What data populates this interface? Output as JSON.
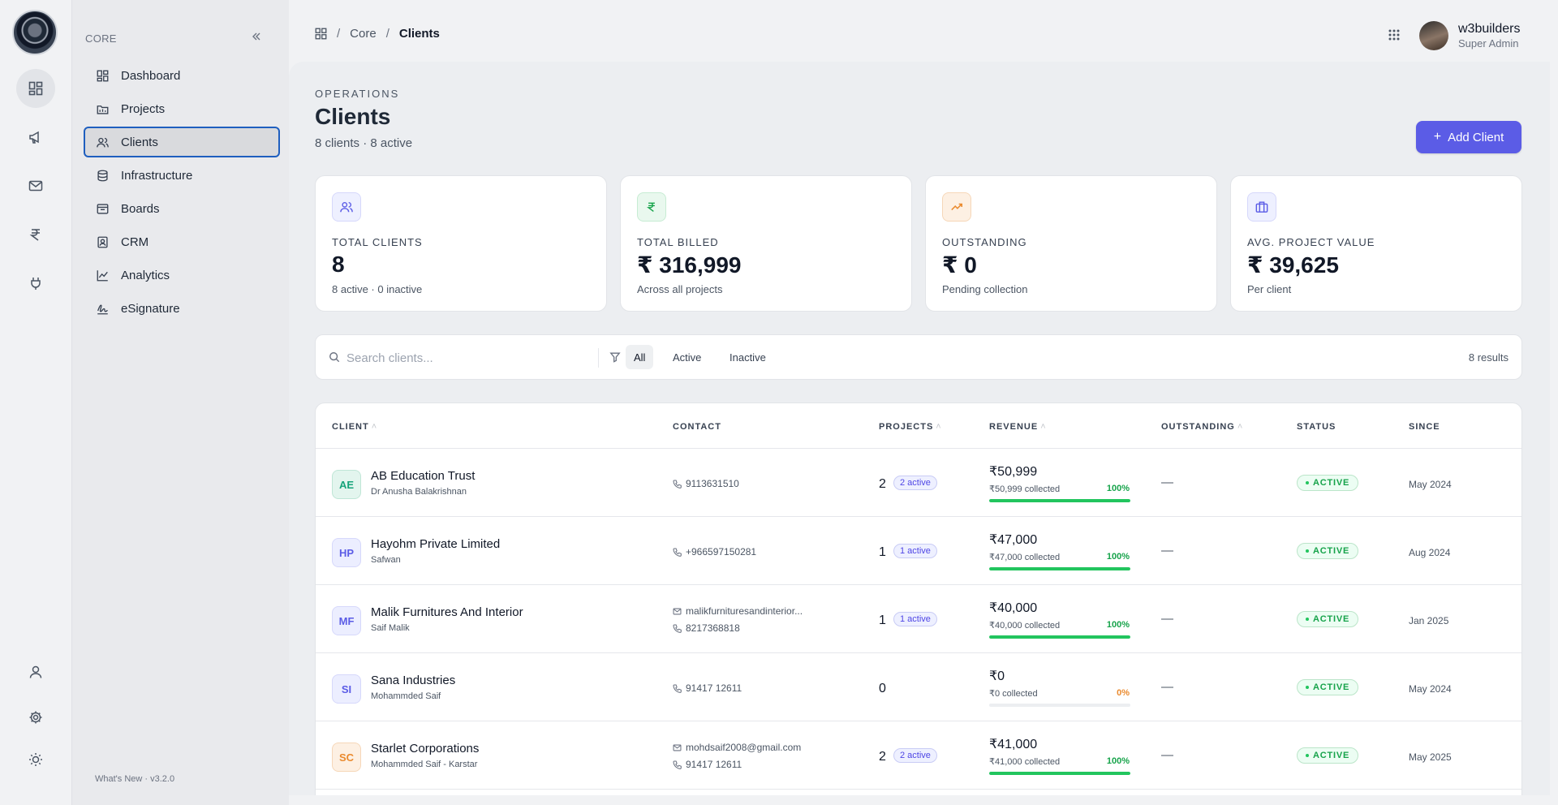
{
  "rail": {
    "icons": [
      "dashboard-icon",
      "megaphone-icon",
      "mail-icon",
      "rupee-icon",
      "plug-icon",
      "user-icon",
      "settings-icon",
      "sun-icon"
    ]
  },
  "sidebar": {
    "section_label": "CORE",
    "items": [
      {
        "label": "Dashboard",
        "icon": "dashboard-icon"
      },
      {
        "label": "Projects",
        "icon": "projects-icon"
      },
      {
        "label": "Clients",
        "icon": "clients-icon",
        "active": true
      },
      {
        "label": "Infrastructure",
        "icon": "database-icon"
      },
      {
        "label": "Boards",
        "icon": "board-icon"
      },
      {
        "label": "CRM",
        "icon": "contact-card-icon"
      },
      {
        "label": "Analytics",
        "icon": "chart-line-icon"
      },
      {
        "label": "eSignature",
        "icon": "signature-icon"
      }
    ],
    "version": "What's New · v3.2.0"
  },
  "breadcrumb": [
    "Core",
    "Clients"
  ],
  "user": {
    "name": "w3builders",
    "role": "Super Admin"
  },
  "page": {
    "kicker": "OPERATIONS",
    "title": "Clients",
    "subtitle": "8 clients · 8 active",
    "add_button": "Add Client"
  },
  "stats": [
    {
      "label": "TOTAL CLIENTS",
      "value": "8",
      "note": "8 active · 0 inactive",
      "icon": "users-icon",
      "color": "#5b5ce6"
    },
    {
      "label": "TOTAL BILLED",
      "value": "₹ 316,999",
      "note": "Across all projects",
      "icon": "rupee-icon",
      "color": "#16a34a"
    },
    {
      "label": "OUTSTANDING",
      "value": "₹ 0",
      "note": "Pending collection",
      "icon": "trending-up-icon",
      "color": "#ea8a2e"
    },
    {
      "label": "AVG. PROJECT VALUE",
      "value": "₹ 39,625",
      "note": "Per client",
      "icon": "briefcase-icon",
      "color": "#5b5ce6"
    }
  ],
  "filter": {
    "search_placeholder": "Search clients...",
    "tabs": [
      "All",
      "Active",
      "Inactive"
    ],
    "selected_tab": "All",
    "results": "8 results"
  },
  "table": {
    "columns": [
      "CLIENT",
      "CONTACT",
      "PROJECTS",
      "REVENUE",
      "OUTSTANDING",
      "STATUS",
      "SINCE"
    ],
    "rows": [
      {
        "initials": "AE",
        "name": "AB Education Trust",
        "person": "Dr Anusha Balakrishnan",
        "email": "",
        "phone": "9113631510",
        "projects": "2",
        "projects_active": "2 active",
        "revenue": "₹50,999",
        "collected": "₹50,999 collected",
        "percent": "100%",
        "progress": 1.0,
        "outstanding": "—",
        "status": "ACTIVE",
        "since": "May 2024",
        "color": "#16a37a",
        "bg": "#e3f5ee"
      },
      {
        "initials": "HP",
        "name": "Hayohm Private Limited",
        "person": "Safwan",
        "email": "",
        "phone": "+966597150281",
        "projects": "1",
        "projects_active": "1 active",
        "revenue": "₹47,000",
        "collected": "₹47,000 collected",
        "percent": "100%",
        "progress": 1.0,
        "outstanding": "—",
        "status": "ACTIVE",
        "since": "Aug 2024",
        "color": "#5b5ce6",
        "bg": "#eceeff"
      },
      {
        "initials": "MF",
        "name": "Malik Furnitures And Interior",
        "person": "Saif Malik",
        "email": "malikfurnituresandinterior...",
        "phone": "8217368818",
        "projects": "1",
        "projects_active": "1 active",
        "revenue": "₹40,000",
        "collected": "₹40,000 collected",
        "percent": "100%",
        "progress": 1.0,
        "outstanding": "—",
        "status": "ACTIVE",
        "since": "Jan 2025",
        "color": "#5b5ce6",
        "bg": "#eceeff"
      },
      {
        "initials": "SI",
        "name": "Sana Industries",
        "person": "Mohammded Saif",
        "email": "",
        "phone": "91417 12611",
        "projects": "0",
        "projects_active": "",
        "revenue": "₹0",
        "collected": "₹0 collected",
        "percent": "0%",
        "progress": 0.0,
        "outstanding": "—",
        "status": "ACTIVE",
        "since": "May 2024",
        "color": "#5b5ce6",
        "bg": "#eceeff"
      },
      {
        "initials": "SC",
        "name": "Starlet Corporations",
        "person": "Mohammded Saif - Karstar",
        "email": "mohdsaif2008@gmail.com",
        "phone": "91417 12611",
        "projects": "2",
        "projects_active": "2 active",
        "revenue": "₹41,000",
        "collected": "₹41,000 collected",
        "percent": "100%",
        "progress": 1.0,
        "outstanding": "—",
        "status": "ACTIVE",
        "since": "May 2025",
        "color": "#ea8a2e",
        "bg": "#fdf0e3"
      }
    ]
  }
}
